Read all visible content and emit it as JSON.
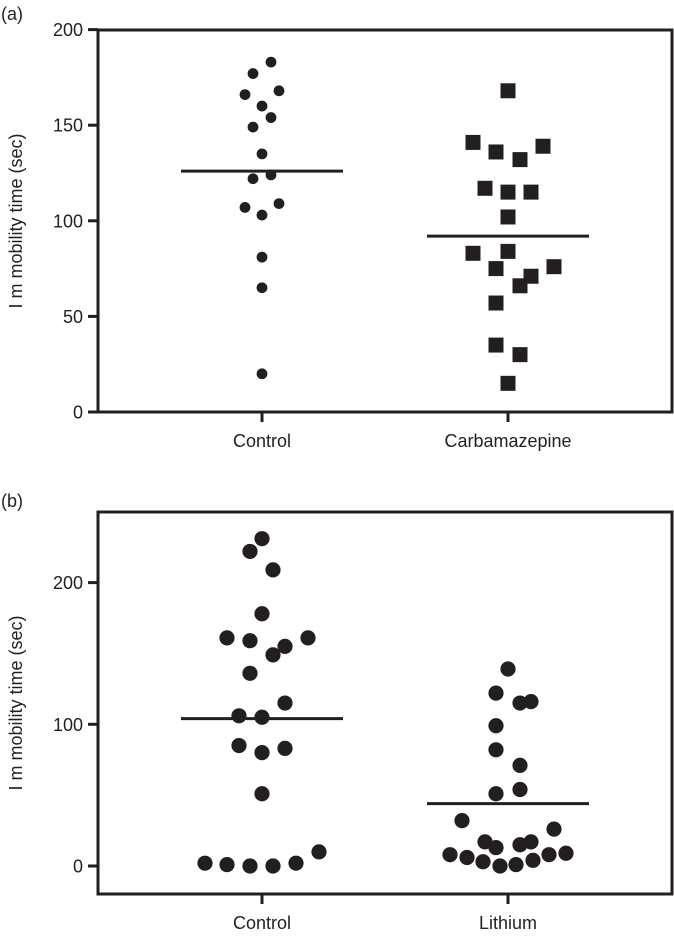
{
  "chart_data": [
    {
      "type": "scatter",
      "panel_label": "(a)",
      "ylabel": "I m mobility time (sec)",
      "ylim": [
        0,
        200
      ],
      "yticks": [
        0,
        50,
        100,
        150,
        200
      ],
      "categories": [
        "Control",
        "Carbamazepine"
      ],
      "grid": false,
      "series": [
        {
          "category": "Control",
          "marker": "circle",
          "values": [
            183,
            177,
            166,
            168,
            160,
            154,
            149,
            135,
            122,
            124,
            107,
            109,
            103,
            81,
            65,
            20
          ],
          "mean": 126
        },
        {
          "category": "Carbamazepine",
          "marker": "square",
          "values": [
            168,
            141,
            136,
            132,
            139,
            117,
            115,
            115,
            102,
            83,
            84,
            75,
            71,
            76,
            66,
            57,
            35,
            30,
            15
          ],
          "mean": 92
        }
      ]
    },
    {
      "type": "scatter",
      "panel_label": "(b)",
      "ylabel": "I m mobility time (sec)",
      "ylim": [
        -20,
        250
      ],
      "yticks": [
        0,
        100,
        200
      ],
      "categories": [
        "Control",
        "Lithium"
      ],
      "grid": false,
      "series": [
        {
          "category": "Control",
          "marker": "circle",
          "values": [
            231,
            222,
            209,
            178,
            161,
            159,
            161,
            155,
            149,
            136,
            115,
            106,
            105,
            85,
            80,
            83,
            51,
            2,
            1,
            0,
            0,
            2,
            10
          ],
          "mean": 104
        },
        {
          "category": "Lithium",
          "marker": "circle",
          "values": [
            139,
            122,
            115,
            116,
            99,
            82,
            71,
            54,
            51,
            32,
            26,
            17,
            13,
            15,
            17,
            8,
            6,
            3,
            0,
            1,
            4,
            8,
            9
          ],
          "mean": 44
        }
      ]
    }
  ],
  "colors": {
    "marker": "#231f20",
    "axis": "#231f20"
  }
}
